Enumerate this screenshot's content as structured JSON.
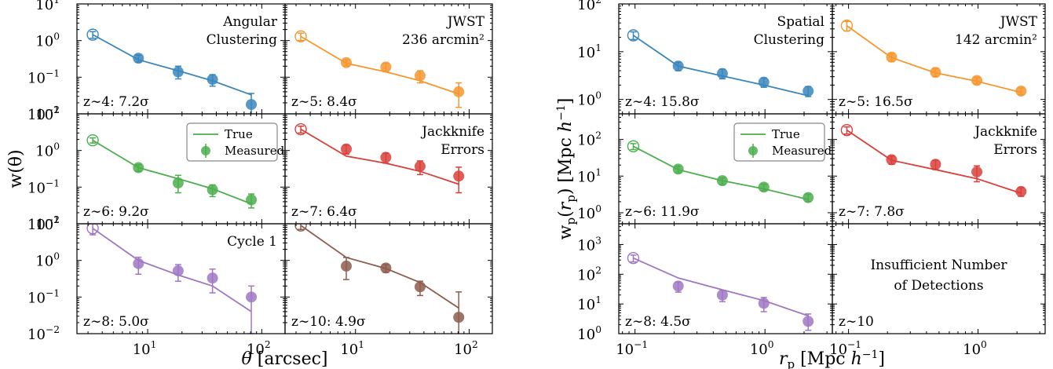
{
  "chart_data": [
    {
      "type": "scatter",
      "title": "",
      "xlabel": "θ [arcsec]",
      "ylabel": "w(θ)",
      "xscale": "log",
      "yscale": "log",
      "xlim": [
        2.4,
        160
      ],
      "ylim": [
        0.01,
        10
      ],
      "x_ticks": [
        {
          "value": 10,
          "label": "10",
          "exp": "1"
        },
        {
          "value": 100,
          "label": "10",
          "exp": "2"
        }
      ],
      "y_ticks": [
        {
          "value": 0.01,
          "label": "10",
          "exp": "−2"
        },
        {
          "value": 0.1,
          "label": "10",
          "exp": "−1"
        },
        {
          "value": 1,
          "label": "10",
          "exp": "0"
        },
        {
          "value": 10,
          "label": "10",
          "exp": "1"
        }
      ],
      "legend": {
        "location": "top-right of z~6 panel",
        "entries": [
          {
            "label": "True",
            "kind": "line"
          },
          {
            "label": "Measured",
            "kind": "errorbar-marker"
          }
        ]
      },
      "panels": [
        {
          "z_label": "z∼4: 7.2σ",
          "annotation": [
            "Angular",
            "Clustering"
          ],
          "color": "#3a86bd",
          "true": {
            "x": [
              3.3,
              8.3,
              18.5,
              37,
              81
            ],
            "y": [
              1.45,
              0.3,
              0.15,
              0.08,
              0.033
            ]
          },
          "measured": {
            "x": [
              3.3,
              8.3,
              18.5,
              37,
              81
            ],
            "y": [
              1.45,
              0.33,
              0.14,
              0.087,
              0.018
            ],
            "yerr_lo": [
              0.3,
              0.07,
              0.05,
              0.03,
              0.012
            ],
            "yerr_hi": [
              0.3,
              0.07,
              0.06,
              0.03,
              0.018
            ]
          }
        },
        {
          "z_label": "z∼5: 8.4σ",
          "annotation": [
            "JWST",
            "236 arcmin²"
          ],
          "color": "#f5972f",
          "true": {
            "x": [
              3.3,
              8.3,
              18.5,
              37,
              81
            ],
            "y": [
              1.3,
              0.24,
              0.14,
              0.08,
              0.035
            ]
          },
          "measured": {
            "x": [
              3.3,
              8.3,
              18.5,
              37,
              81
            ],
            "y": [
              1.3,
              0.25,
              0.19,
              0.11,
              0.04
            ],
            "yerr_lo": [
              0.3,
              0.05,
              0.05,
              0.04,
              0.025
            ],
            "yerr_hi": [
              0.3,
              0.05,
              0.05,
              0.04,
              0.03
            ]
          }
        },
        {
          "z_label": "z∼6: 9.2σ",
          "annotation": [],
          "color": "#4cae4c",
          "true": {
            "x": [
              3.3,
              8.3,
              18.5,
              37,
              81
            ],
            "y": [
              1.9,
              0.34,
              0.17,
              0.09,
              0.035
            ]
          },
          "measured": {
            "x": [
              3.3,
              8.3,
              18.5,
              37,
              81
            ],
            "y": [
              1.9,
              0.34,
              0.13,
              0.085,
              0.045
            ],
            "yerr_lo": [
              0.3,
              0.07,
              0.06,
              0.03,
              0.018
            ],
            "yerr_hi": [
              0.3,
              0.07,
              0.08,
              0.03,
              0.02
            ]
          }
        },
        {
          "z_label": "z∼7: 6.4σ",
          "annotation": [
            "Jackknife",
            "Errors"
          ],
          "color": "#d9403a",
          "true": {
            "x": [
              3.3,
              8.3,
              18.5,
              37,
              81
            ],
            "y": [
              3.8,
              0.7,
              0.45,
              0.27,
              0.12
            ]
          },
          "measured": {
            "x": [
              3.3,
              8.3,
              18.5,
              37,
              81
            ],
            "y": [
              3.8,
              1.1,
              0.65,
              0.37,
              0.2
            ],
            "yerr_lo": [
              0.8,
              0.3,
              0.2,
              0.15,
              0.13
            ],
            "yerr_hi": [
              0.8,
              0.3,
              0.2,
              0.15,
              0.15
            ]
          }
        },
        {
          "z_label": "z∼8: 5.0σ",
          "annotation": [
            "Cycle 1"
          ],
          "color": "#9f77c3",
          "true": {
            "x": [
              3.3,
              8.3,
              18.5,
              37,
              81
            ],
            "y": [
              7.5,
              1.0,
              0.4,
              0.2,
              0.04
            ]
          },
          "measured": {
            "x": [
              3.3,
              8.3,
              18.5,
              37,
              81
            ],
            "y": [
              7.5,
              0.82,
              0.52,
              0.33,
              0.1
            ],
            "yerr_lo": [
              2.5,
              0.4,
              0.25,
              0.2,
              0.09
            ],
            "yerr_hi": [
              2.5,
              0.4,
              0.25,
              0.25,
              0.1
            ]
          }
        },
        {
          "z_label": "z∼10: 4.9σ",
          "annotation": [],
          "color": "#8e5c4e",
          "true": {
            "x": [
              3.3,
              8.3,
              18.5,
              37,
              81
            ],
            "y": [
              9.0,
              1.2,
              0.6,
              0.25,
              0.05
            ]
          },
          "measured": {
            "x": [
              3.3,
              8.3,
              18.5,
              37,
              81
            ],
            "y": [
              9.0,
              0.7,
              0.62,
              0.19,
              0.028
            ],
            "yerr_lo": [
              2.0,
              0.4,
              0.15,
              0.08,
              0.02
            ],
            "yerr_hi": [
              2.0,
              0.5,
              0.15,
              0.08,
              0.11
            ]
          }
        }
      ]
    },
    {
      "type": "scatter",
      "title": "",
      "xlabel": "r_p [Mpc h⁻¹]",
      "ylabel": "w_p(r_p) [Mpc h⁻¹]",
      "xscale": "log",
      "yscale": "log",
      "xlim": [
        0.075,
        3.3
      ],
      "ylim": [
        1,
        100
      ],
      "x_ticks": [
        {
          "value": 0.1,
          "label": "10",
          "exp": "−1"
        },
        {
          "value": 1,
          "label": "10",
          "exp": "0"
        }
      ],
      "legend": {
        "location": "top-right of z~6 panel",
        "entries": [
          {
            "label": "True",
            "kind": "line"
          },
          {
            "label": "Measured",
            "kind": "errorbar-marker"
          }
        ]
      },
      "panels": [
        {
          "z_label": "z∼4: 15.8σ",
          "annotation": [
            "Spatial",
            "Clustering"
          ],
          "color": "#3a86bd",
          "ylim": [
            0.5,
            100
          ],
          "y_ticks": [
            {
              "value": 1,
              "label": "10",
              "exp": "0"
            },
            {
              "value": 10,
              "label": "10",
              "exp": "1"
            },
            {
              "value": 100,
              "label": "10",
              "exp": "2"
            }
          ],
          "true": {
            "x": [
              0.097,
              0.215,
              0.47,
              0.98,
              2.15
            ],
            "y": [
              22,
              5.0,
              3.1,
              2.0,
              1.2
            ]
          },
          "measured": {
            "x": [
              0.097,
              0.215,
              0.47,
              0.98,
              2.15
            ],
            "y": [
              22,
              5.0,
              3.5,
              2.3,
              1.5
            ],
            "yerr_lo": [
              4,
              1,
              0.8,
              0.5,
              0.35
            ],
            "yerr_hi": [
              4,
              1,
              0.8,
              0.5,
              0.35
            ]
          }
        },
        {
          "z_label": "z∼5: 16.5σ",
          "annotation": [
            "JWST",
            "142 arcmin²"
          ],
          "color": "#f5972f",
          "ylim": [
            0.5,
            100
          ],
          "y_ticks": [],
          "true": {
            "x": [
              0.097,
              0.215,
              0.47,
              0.98,
              2.15
            ],
            "y": [
              35,
              7.5,
              3.6,
              2.4,
              1.4
            ]
          },
          "measured": {
            "x": [
              0.097,
              0.215,
              0.47,
              0.98,
              2.15
            ],
            "y": [
              35,
              7.7,
              3.7,
              2.5,
              1.5
            ],
            "yerr_lo": [
              8,
              1.5,
              0.7,
              0.4,
              0.25
            ],
            "yerr_hi": [
              8,
              1.5,
              0.7,
              0.4,
              0.25
            ]
          }
        },
        {
          "z_label": "z∼6: 11.9σ",
          "annotation": [],
          "color": "#4cae4c",
          "ylim": [
            0.5,
            500
          ],
          "y_ticks": [
            {
              "value": 1,
              "label": "10",
              "exp": "0"
            },
            {
              "value": 10,
              "label": "10",
              "exp": "1"
            },
            {
              "value": 100,
              "label": "10",
              "exp": "2"
            }
          ],
          "true": {
            "x": [
              0.097,
              0.215,
              0.47,
              0.98,
              2.15
            ],
            "y": [
              65,
              15,
              7.5,
              4.5,
              2.3
            ]
          },
          "measured": {
            "x": [
              0.097,
              0.215,
              0.47,
              0.98,
              2.15
            ],
            "y": [
              65,
              15.5,
              7.5,
              5.0,
              2.6
            ],
            "yerr_lo": [
              12,
              3,
              1.5,
              1,
              0.6
            ],
            "yerr_hi": [
              12,
              3,
              1.5,
              1,
              0.6
            ]
          }
        },
        {
          "z_label": "z∼7: 7.8σ",
          "annotation": [
            "Jackknife",
            "Errors"
          ],
          "color": "#d9403a",
          "ylim": [
            0.5,
            500
          ],
          "y_ticks": [],
          "true": {
            "x": [
              0.097,
              0.215,
              0.47,
              0.98,
              2.15
            ],
            "y": [
              180,
              27,
              15,
              8.5,
              3.4
            ]
          },
          "measured": {
            "x": [
              0.097,
              0.215,
              0.47,
              0.98,
              2.15
            ],
            "y": [
              180,
              28,
              21,
              13,
              3.8
            ],
            "yerr_lo": [
              40,
              7,
              6,
              6,
              1
            ],
            "yerr_hi": [
              40,
              7,
              6,
              6,
              1
            ]
          }
        },
        {
          "z_label": "z∼8: 4.5σ",
          "annotation": [],
          "color": "#9f77c3",
          "ylim": [
            1,
            5000
          ],
          "y_ticks": [
            {
              "value": 1,
              "label": "10",
              "exp": "0"
            },
            {
              "value": 10,
              "label": "10",
              "exp": "1"
            },
            {
              "value": 100,
              "label": "10",
              "exp": "2"
            },
            {
              "value": 1000,
              "label": "10",
              "exp": "3"
            }
          ],
          "true": {
            "x": [
              0.097,
              0.215,
              0.47,
              0.98,
              2.15
            ],
            "y": [
              350,
              75,
              30,
              13,
              4
            ]
          },
          "measured": {
            "x": [
              0.097,
              0.215,
              0.47,
              0.98,
              2.15
            ],
            "y": [
              350,
              40,
              20,
              10.5,
              2.6
            ],
            "yerr_lo": [
              90,
              15,
              8,
              5,
              1.3
            ],
            "yerr_hi": [
              90,
              15,
              8,
              6,
              2
            ]
          }
        },
        {
          "z_label": "z∼10",
          "annotation": [
            "Insufficient Number",
            "of Detections"
          ],
          "color": "#8e5c4e",
          "ylim": [
            1,
            5000
          ],
          "y_ticks": [],
          "true": {
            "x": [],
            "y": []
          },
          "measured": {
            "x": [],
            "y": [],
            "yerr_lo": [],
            "yerr_hi": []
          }
        }
      ]
    }
  ]
}
